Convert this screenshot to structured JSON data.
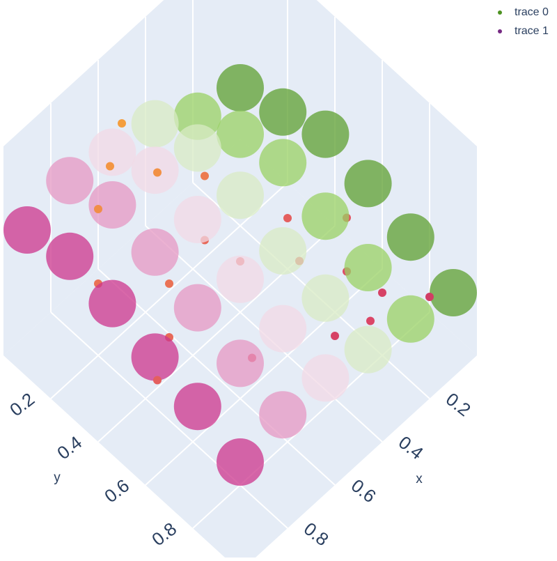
{
  "chart_data": {
    "type": "scatter3d",
    "xlabel": "x",
    "ylabel": "y",
    "xlim": [
      0,
      1
    ],
    "ylim": [
      0,
      1
    ],
    "zlim": [
      0,
      1
    ],
    "xticks": [
      0.2,
      0.4,
      0.6,
      0.8
    ],
    "yticks": [
      0.2,
      0.4,
      0.6,
      0.8
    ],
    "legend": "top-right",
    "grid": true,
    "series": [
      {
        "name": "trace 0",
        "color": "#4d9221",
        "colorscale": [
          "#4d9221",
          "#a1d76a",
          "#f7f7f7",
          "#e9a3c9",
          "#c51b7d"
        ],
        "x": [
          0.05,
          0.05,
          0.05,
          0.05,
          0.05,
          0.05,
          0.23,
          0.23,
          0.23,
          0.23,
          0.23,
          0.23,
          0.41,
          0.41,
          0.41,
          0.41,
          0.41,
          0.41,
          0.59,
          0.59,
          0.59,
          0.59,
          0.59,
          0.59,
          0.77,
          0.77,
          0.77,
          0.77,
          0.77,
          0.77,
          0.95,
          0.95,
          0.95,
          0.95,
          0.95,
          0.95
        ],
        "y": [
          0.05,
          0.23,
          0.41,
          0.59,
          0.77,
          0.95,
          0.05,
          0.23,
          0.41,
          0.59,
          0.77,
          0.95,
          0.05,
          0.23,
          0.41,
          0.59,
          0.77,
          0.95,
          0.05,
          0.23,
          0.41,
          0.59,
          0.77,
          0.95,
          0.05,
          0.23,
          0.41,
          0.59,
          0.77,
          0.95,
          0.05,
          0.23,
          0.41,
          0.59,
          0.77,
          0.95
        ],
        "z": [
          0.35,
          0.42,
          0.5,
          0.45,
          0.38,
          0.3,
          0.4,
          0.5,
          0.55,
          0.48,
          0.42,
          0.36,
          0.55,
          0.62,
          0.58,
          0.5,
          0.46,
          0.4,
          0.6,
          0.7,
          0.65,
          0.55,
          0.5,
          0.45,
          0.65,
          0.72,
          0.68,
          0.6,
          0.52,
          0.46,
          0.6,
          0.66,
          0.62,
          0.55,
          0.5,
          0.42
        ]
      },
      {
        "name": "trace 1",
        "color": "#762a83",
        "colorscale": [
          "#8e0152",
          "#de4968",
          "#f0884a",
          "#fbc02d"
        ],
        "x": [
          0.9,
          0.8,
          0.7,
          0.6,
          0.55,
          0.5,
          0.45,
          0.35,
          0.3,
          0.25,
          0.2,
          0.15,
          0.85,
          0.75,
          0.65,
          0.4,
          0.3,
          0.1,
          0.6,
          0.95
        ],
        "y": [
          0.3,
          0.2,
          0.15,
          0.1,
          0.4,
          0.5,
          0.3,
          0.6,
          0.5,
          0.7,
          0.8,
          0.6,
          0.55,
          0.45,
          0.7,
          0.8,
          0.85,
          0.9,
          0.25,
          0.6
        ],
        "z": [
          0.55,
          0.7,
          0.75,
          0.8,
          0.5,
          0.45,
          0.6,
          0.4,
          0.45,
          0.35,
          0.3,
          0.4,
          0.5,
          0.55,
          0.35,
          0.3,
          0.32,
          0.28,
          0.72,
          0.45
        ]
      }
    ]
  }
}
